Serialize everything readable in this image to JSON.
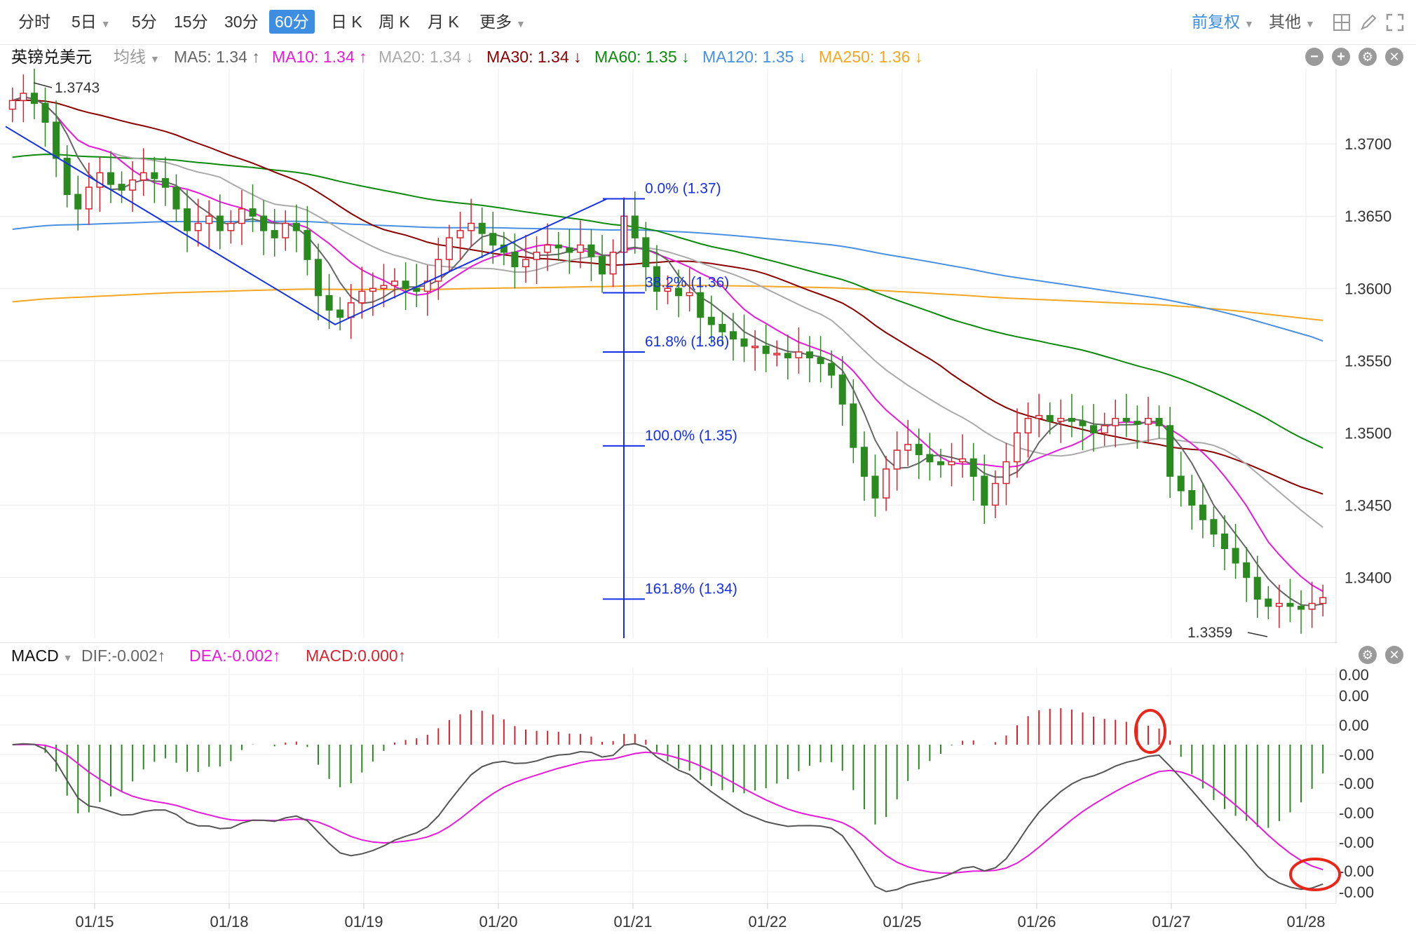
{
  "toolbar": {
    "tabs": [
      "分时",
      "5日",
      "5分",
      "15分",
      "30分",
      "60分",
      "日 K",
      "周 K",
      "月 K",
      "更多"
    ],
    "active_tab": "60分",
    "adjust_label": "前复权",
    "other_label": "其他"
  },
  "legend": {
    "symbol": "英镑兑美元",
    "ma_type": "均线",
    "ma5": "MA5: 1.34 ↑",
    "ma10": "MA10: 1.34 ↑",
    "ma20": "MA20: 1.34 ↓",
    "ma30": "MA30: 1.34 ↓",
    "ma60": "MA60: 1.35 ↓",
    "ma120": "MA120: 1.35 ↓",
    "ma250": "MA250: 1.36 ↓"
  },
  "colors": {
    "up": "#d7232f",
    "down": "#2a8a1f",
    "ma5": "#666666",
    "ma10": "#e61bd9",
    "ma20": "#aaaaaa",
    "ma30": "#8b0000",
    "ma60": "#0b8a0b",
    "ma120": "#4a90e2",
    "ma250": "#f5a623",
    "fib": "#1530e6",
    "grid": "#ebebeb",
    "annotation": "#e8271a"
  },
  "macd_legend": {
    "name": "MACD",
    "dif": "DIF:-0.002↑",
    "dea": "DEA:-0.002↑",
    "macd": "MACD:0.000↑"
  },
  "chart_data": {
    "type": "candlestick",
    "y_axis_ticks": [
      "1.3700",
      "1.3650",
      "1.3600",
      "1.3550",
      "1.3500",
      "1.3450",
      "1.3400"
    ],
    "y_axis_values": [
      1.37,
      1.365,
      1.36,
      1.355,
      1.35,
      1.345,
      1.34
    ],
    "ylim": [
      1.3358,
      1.3752
    ],
    "x_ticks": [
      "01/15",
      "01/18",
      "01/19",
      "01/20",
      "01/21",
      "01/22",
      "01/25",
      "01/26",
      "01/27",
      "01/28"
    ],
    "high_marker": "1.3743",
    "low_marker": "1.3359",
    "fibonacci_levels": [
      {
        "label": "0.0% (1.37)",
        "value": 1.3662
      },
      {
        "label": "38.2% (1.36)",
        "value": 1.3597
      },
      {
        "label": "61.8% (1.36)",
        "value": 1.3556
      },
      {
        "label": "100.0% (1.35)",
        "value": 1.3491
      },
      {
        "label": "161.8% (1.34)",
        "value": 1.3385
      }
    ],
    "close_series": [
      1.373,
      1.3735,
      1.3728,
      1.3715,
      1.369,
      1.3665,
      1.3655,
      1.367,
      1.368,
      1.3672,
      1.3668,
      1.3675,
      1.368,
      1.3676,
      1.367,
      1.3655,
      1.364,
      1.3645,
      1.365,
      1.364,
      1.3645,
      1.3655,
      1.365,
      1.364,
      1.3635,
      1.3645,
      1.364,
      1.362,
      1.3595,
      1.3585,
      1.358,
      1.359,
      1.3598,
      1.36,
      1.3602,
      1.3605,
      1.36,
      1.3598,
      1.3605,
      1.362,
      1.3635,
      1.364,
      1.3645,
      1.3638,
      1.363,
      1.3625,
      1.3615,
      1.362,
      1.3625,
      1.363,
      1.3628,
      1.3625,
      1.363,
      1.3622,
      1.361,
      1.3625,
      1.365,
      1.3635,
      1.3615,
      1.3598,
      1.36,
      1.3595,
      1.3597,
      1.358,
      1.3575,
      1.357,
      1.3565,
      1.356,
      1.356,
      1.3555,
      1.3555,
      1.3552,
      1.3556,
      1.3552,
      1.3548,
      1.354,
      1.352,
      1.349,
      1.347,
      1.3455,
      1.3475,
      1.3488,
      1.3492,
      1.3485,
      1.348,
      1.3478,
      1.348,
      1.3482,
      1.347,
      1.345,
      1.3465,
      1.348,
      1.35,
      1.351,
      1.3512,
      1.3508,
      1.351,
      1.3508,
      1.3505,
      1.35,
      1.3505,
      1.351,
      1.3508,
      1.3506,
      1.351,
      1.3505,
      1.347,
      1.346,
      1.345,
      1.344,
      1.343,
      1.342,
      1.341,
      1.34,
      1.3385,
      1.338,
      1.3382,
      1.338,
      1.3378,
      1.3382,
      1.3386
    ],
    "fib_segment_start": 1.3712,
    "fib_segment_low": 1.3575,
    "y_axis_macd_ticks": [
      "0.00",
      "0.00",
      "0.00",
      "-0.00",
      "-0.00",
      "-0.00",
      "-0.00",
      "-0.00",
      "-0.00"
    ]
  }
}
